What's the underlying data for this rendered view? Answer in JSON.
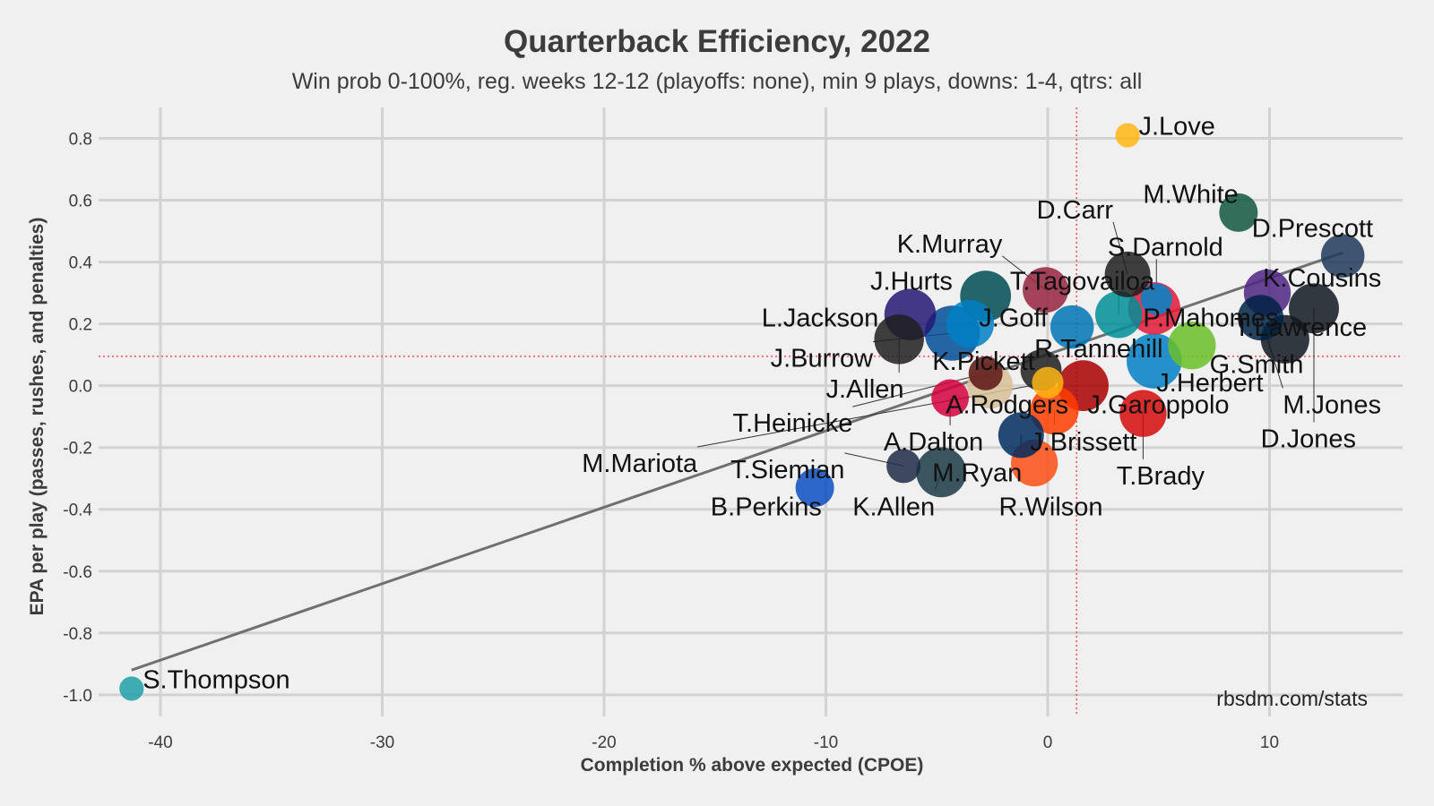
{
  "chart_data": {
    "type": "scatter",
    "title": "Quarterback Efficiency, 2022",
    "subtitle": "Win prob 0-100%, reg. weeks 12-12 (playoffs: none), min 9 plays, downs: 1-4, qtrs: all",
    "xlabel": "Completion % above expected (CPOE)",
    "ylabel": "EPA per play (passes, rushes, and penalties)",
    "caption": "rbsdm.com/stats",
    "xlim": [
      -44,
      16
    ],
    "ylim": [
      -1.07,
      0.9
    ],
    "x_ticks": [
      -40,
      -30,
      -20,
      -10,
      0,
      10
    ],
    "y_ticks": [
      0.8,
      0.6,
      0.4,
      0.2,
      0.0,
      -0.2,
      -0.4,
      -0.6,
      -0.8,
      -1.0
    ],
    "x_tick_labels": [
      "-40",
      "-30",
      "-20",
      "-10",
      "0",
      "10"
    ],
    "y_tick_labels": [
      "0.8",
      "0.6",
      "0.4",
      "0.2",
      "0.0",
      "-0.2",
      "-0.4",
      "-0.6",
      "-0.8",
      "-1.0"
    ],
    "mean_lines": {
      "x": 1.3,
      "y": 0.095,
      "color": "#ff4d4d"
    },
    "trend_line": {
      "x": [
        -41.3,
        13.3
      ],
      "y": [
        -0.92,
        0.43
      ],
      "color": "#707070"
    },
    "points": [
      {
        "name": "J.Love",
        "x": 3.6,
        "y": 0.81,
        "plays": 9,
        "color": "#FFB612",
        "label_x": 4.1,
        "label_y": 0.84
      },
      {
        "name": "M.White",
        "x": 8.6,
        "y": 0.56,
        "plays": 30,
        "color": "#125740",
        "label_x": 4.3,
        "label_y": 0.62
      },
      {
        "name": "D.Prescott",
        "x": 13.3,
        "y": 0.42,
        "plays": 40,
        "color": "#1d3a5a",
        "label_x": 9.2,
        "label_y": 0.51
      },
      {
        "name": "D.Carr",
        "x": 3.6,
        "y": 0.36,
        "plays": 45,
        "color": "#1f1f1f",
        "label_x": -0.5,
        "label_y": 0.57,
        "leader": true
      },
      {
        "name": "S.Darnold",
        "x": 4.9,
        "y": 0.28,
        "plays": 18,
        "color": "#0085CA",
        "label_x": 2.7,
        "label_y": 0.45,
        "leader": true
      },
      {
        "name": "K.Murray",
        "x": -0.1,
        "y": 0.31,
        "plays": 45,
        "color": "#97233F",
        "label_x": -6.8,
        "label_y": 0.46,
        "leader": true
      },
      {
        "name": "K.Cousins",
        "x": 9.9,
        "y": 0.3,
        "plays": 48,
        "color": "#4F2683",
        "label_x": 9.7,
        "label_y": 0.35
      },
      {
        "name": "T.Tagovailoa",
        "x": 3.2,
        "y": 0.23,
        "plays": 48,
        "color": "#008E97",
        "label_x": -1.7,
        "label_y": 0.34,
        "leader": true
      },
      {
        "name": "J.Hurts",
        "x": -2.8,
        "y": 0.29,
        "plays": 58,
        "color": "#004C54",
        "label_x": -8.0,
        "label_y": 0.34
      },
      {
        "name": "P.Mahomes",
        "x": 4.8,
        "y": 0.25,
        "plays": 62,
        "color": "#E31837",
        "label_x": 4.3,
        "label_y": 0.22
      },
      {
        "name": "J.Goff",
        "x": 1.1,
        "y": 0.19,
        "plays": 40,
        "color": "#0076B6",
        "label_x": -3.1,
        "label_y": 0.22
      },
      {
        "name": "L.Jackson",
        "x": -6.2,
        "y": 0.23,
        "plays": 60,
        "color": "#241773",
        "label_x": -12.9,
        "label_y": 0.22
      },
      {
        "name": "K.Pickett",
        "x": -3.5,
        "y": 0.2,
        "plays": 50,
        "color": "#0080C6",
        "label_x": -5.2,
        "label_y": 0.08
      },
      {
        "name": "T.Lawrence",
        "x": 10.7,
        "y": 0.15,
        "plays": 52,
        "color": "#101820",
        "label_x": 8.4,
        "label_y": 0.19
      },
      {
        "name": "D.Jones",
        "x": 12.0,
        "y": 0.25,
        "plays": 56,
        "color": "#101820",
        "label_x": 9.6,
        "label_y": -0.17,
        "leader": true
      },
      {
        "name": "J.Burrow",
        "x": -4.3,
        "y": 0.17,
        "plays": 70,
        "color": "#004C97",
        "label_x": -12.5,
        "label_y": 0.09,
        "leader": true
      },
      {
        "name": "J.Allen",
        "x": -6.7,
        "y": 0.15,
        "plays": 55,
        "color": "#1f1f1f",
        "label_x": -10.0,
        "label_y": -0.01,
        "leader": true
      },
      {
        "name": "R.Tannehill",
        "x": -0.3,
        "y": 0.05,
        "plays": 35,
        "color": "#1f1f1f",
        "label_x": -0.6,
        "label_y": 0.12
      },
      {
        "name": "G.Smith",
        "x": 6.5,
        "y": 0.13,
        "plays": 50,
        "color": "#69BE28",
        "label_x": 7.3,
        "label_y": 0.07
      },
      {
        "name": "M.Jones",
        "x": 9.6,
        "y": 0.22,
        "plays": 45,
        "color": "#002244",
        "label_x": 10.6,
        "label_y": -0.06,
        "leader": true
      },
      {
        "name": "J.Herbert",
        "x": 4.8,
        "y": 0.08,
        "plays": 70,
        "color": "#0080C6",
        "label_x": 4.9,
        "label_y": 0.01
      },
      {
        "name": "A.Rodgers",
        "x": -2.6,
        "y": 0.0,
        "plays": 45,
        "color": "#D8C098",
        "label_x": -4.6,
        "label_y": -0.06
      },
      {
        "name": "J.Garoppolo",
        "x": 1.6,
        "y": 0.0,
        "plays": 58,
        "color": "#AA0000",
        "label_x": 1.8,
        "label_y": -0.06
      },
      {
        "name": "T.Heinicke",
        "x": -2.8,
        "y": 0.04,
        "plays": 22,
        "color": "#5A1414",
        "label_x": -14.2,
        "label_y": -0.12,
        "leader": true
      },
      {
        "name": "A.Dalton",
        "x": -4.4,
        "y": -0.04,
        "plays": 28,
        "color": "#D3003B",
        "label_x": -7.4,
        "label_y": -0.18,
        "leader": true
      },
      {
        "name": "M.Mariota",
        "x": 0.0,
        "y": 0.01,
        "plays": 18,
        "color": "#FFB612",
        "label_x": -21.0,
        "label_y": -0.25,
        "leader": true
      },
      {
        "name": "J.Brissett",
        "x": 0.3,
        "y": -0.08,
        "plays": 52,
        "color": "#FF3C00",
        "label_x": -0.8,
        "label_y": -0.18,
        "leader": true
      },
      {
        "name": "T.Brady",
        "x": 4.3,
        "y": -0.09,
        "plays": 48,
        "color": "#D50A0A",
        "label_x": 3.1,
        "label_y": -0.29,
        "leader": true
      },
      {
        "name": "T.Siemian",
        "x": -6.5,
        "y": -0.26,
        "plays": 22,
        "color": "#1f2a44",
        "label_x": -14.3,
        "label_y": -0.27,
        "leader": true
      },
      {
        "name": "M.Ryan",
        "x": -1.2,
        "y": -0.16,
        "plays": 45,
        "color": "#002C5F",
        "label_x": -5.2,
        "label_y": -0.28,
        "leader": true
      },
      {
        "name": "R.Wilson",
        "x": -0.6,
        "y": -0.25,
        "plays": 48,
        "color": "#FB4F14",
        "label_x": -2.2,
        "label_y": -0.39
      },
      {
        "name": "B.Perkins",
        "x": -10.5,
        "y": -0.33,
        "plays": 30,
        "color": "#0A4FBF",
        "label_x": -15.2,
        "label_y": -0.39
      },
      {
        "name": "K.Allen",
        "x": -4.8,
        "y": -0.28,
        "plays": 56,
        "color": "#1a3a44",
        "label_x": -8.8,
        "label_y": -0.39,
        "leader": true
      },
      {
        "name": "S.Thompson",
        "x": -41.3,
        "y": -0.98,
        "plays": 9,
        "color": "#20A0A8",
        "label_x": -40.8,
        "label_y": -0.95
      }
    ]
  }
}
